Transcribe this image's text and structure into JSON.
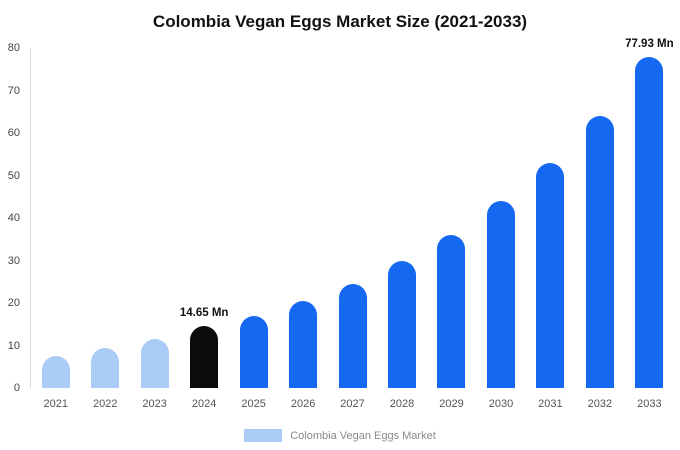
{
  "chart_data": {
    "type": "bar",
    "title": "Colombia Vegan Eggs Market Size (2021-2033)",
    "xlabel": "",
    "ylabel": "",
    "ylim": [
      0,
      80
    ],
    "yticks": [
      0,
      10,
      20,
      30,
      40,
      50,
      60,
      70,
      80
    ],
    "grid": false,
    "legend_position": "bottom",
    "categories": [
      "2021",
      "2022",
      "2023",
      "2024",
      "2025",
      "2026",
      "2027",
      "2028",
      "2029",
      "2030",
      "2031",
      "2032",
      "2033"
    ],
    "values": [
      7.5,
      9.5,
      11.5,
      14.65,
      17,
      20.5,
      24.5,
      30,
      36,
      44,
      53,
      64,
      77.93
    ],
    "bar_colors": [
      "#a9cbf5",
      "#a9cbf5",
      "#a9cbf5",
      "#0b0b0b",
      "#1569f0",
      "#1569f0",
      "#1569f0",
      "#1569f0",
      "#1569f0",
      "#1569f0",
      "#1569f0",
      "#1569f0",
      "#1569f0"
    ],
    "annotations": [
      {
        "index": 3,
        "text": "14.65 Mn"
      },
      {
        "index": 12,
        "text": "77.93 Mn"
      }
    ],
    "legend": [
      {
        "label": "Colombia Vegan Eggs Market",
        "color": "#a9cbf5"
      }
    ],
    "colors": {
      "historical": "#a9cbf5",
      "base_year": "#0b0b0b",
      "forecast": "#1569f0"
    }
  }
}
